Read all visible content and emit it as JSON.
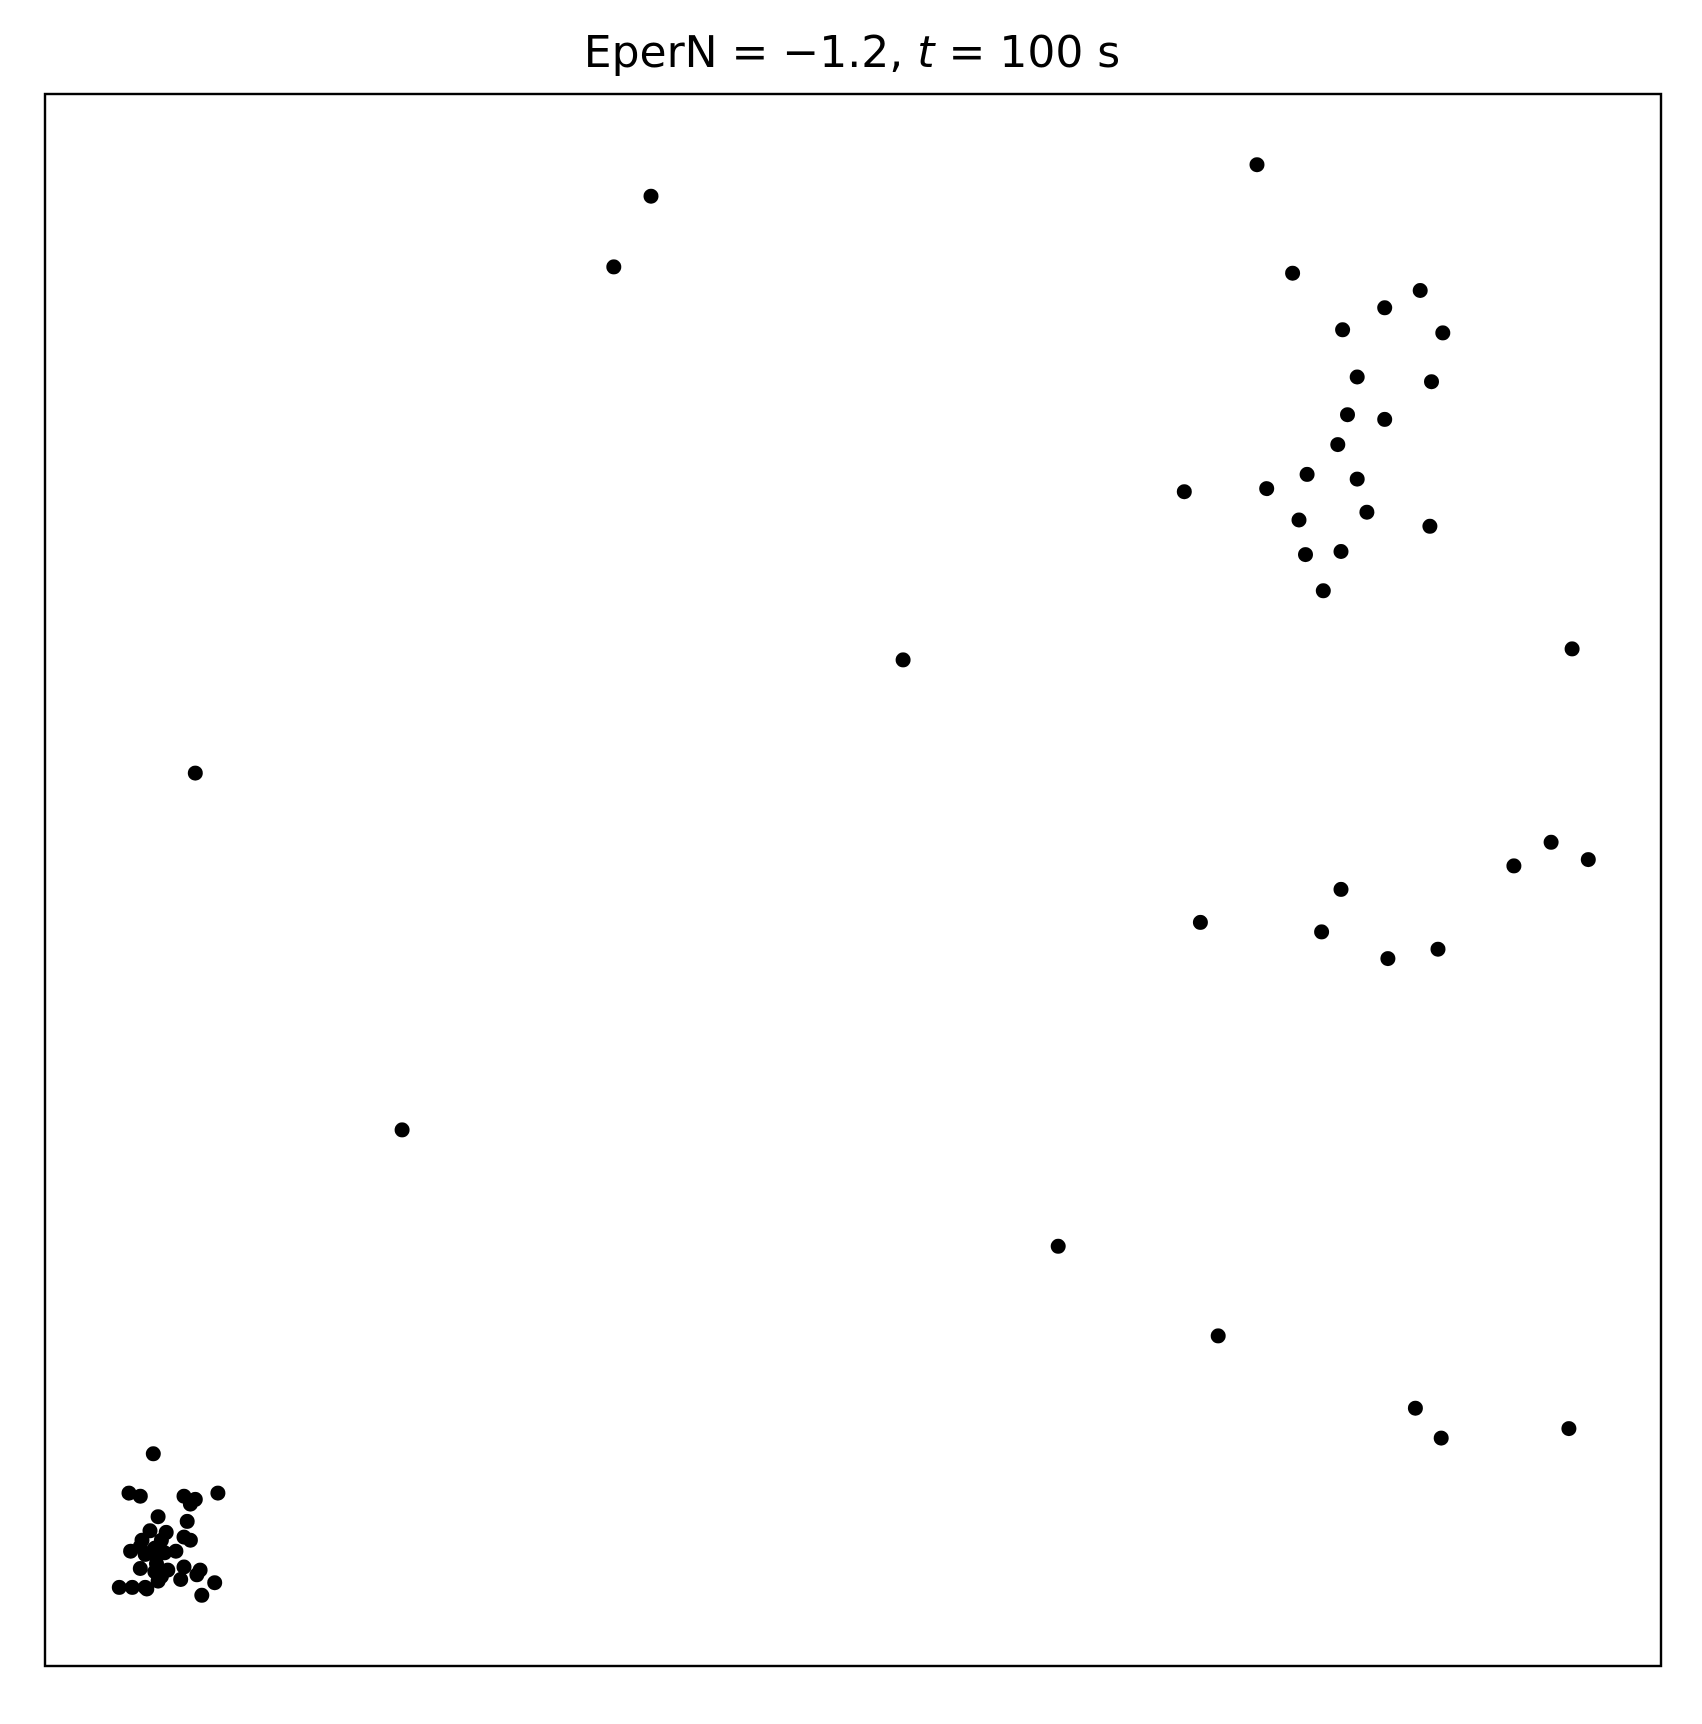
{
  "chart_data": {
    "type": "scatter",
    "title": "EperN = −1.2, t = 100 s",
    "title_parts": {
      "lead": "EperN = −1.2, ",
      "italic": "t",
      "tail": " = 100 s"
    },
    "xlabel": "",
    "ylabel": "",
    "xlim": [
      0,
      100
    ],
    "ylim": [
      0,
      100
    ],
    "ticks": false,
    "grid": false,
    "legend": "none",
    "marker_color": "#000000",
    "frame_color": "#000000",
    "points": [
      [
        75.0,
        95.5
      ],
      [
        37.5,
        93.5
      ],
      [
        35.2,
        89.0
      ],
      [
        77.2,
        88.6
      ],
      [
        85.1,
        87.5
      ],
      [
        82.9,
        86.4
      ],
      [
        80.3,
        85.0
      ],
      [
        86.5,
        84.8
      ],
      [
        81.2,
        82.0
      ],
      [
        85.8,
        81.7
      ],
      [
        80.6,
        79.6
      ],
      [
        80.0,
        77.7
      ],
      [
        82.9,
        79.3
      ],
      [
        78.1,
        75.8
      ],
      [
        81.2,
        75.5
      ],
      [
        70.5,
        74.7
      ],
      [
        75.6,
        74.9
      ],
      [
        81.8,
        73.4
      ],
      [
        77.6,
        72.9
      ],
      [
        85.7,
        72.5
      ],
      [
        80.2,
        70.9
      ],
      [
        78.0,
        70.7
      ],
      [
        79.1,
        68.4
      ],
      [
        53.1,
        64.0
      ],
      [
        94.5,
        64.7
      ],
      [
        9.3,
        56.8
      ],
      [
        93.2,
        52.4
      ],
      [
        95.5,
        51.3
      ],
      [
        90.9,
        50.9
      ],
      [
        80.2,
        49.4
      ],
      [
        71.5,
        47.3
      ],
      [
        79.0,
        46.7
      ],
      [
        86.2,
        45.6
      ],
      [
        83.1,
        45.0
      ],
      [
        22.1,
        34.1
      ],
      [
        62.7,
        26.7
      ],
      [
        72.6,
        21.0
      ],
      [
        84.8,
        16.4
      ],
      [
        86.4,
        14.5
      ],
      [
        94.3,
        15.1
      ],
      [
        6.7,
        13.5
      ],
      [
        5.2,
        11.0
      ],
      [
        5.9,
        10.8
      ],
      [
        8.6,
        10.8
      ],
      [
        9.3,
        10.6
      ],
      [
        10.7,
        11.0
      ],
      [
        9.0,
        10.3
      ],
      [
        7.0,
        9.5
      ],
      [
        8.8,
        9.2
      ],
      [
        6.5,
        8.6
      ],
      [
        7.5,
        8.5
      ],
      [
        6.0,
        8.0
      ],
      [
        7.2,
        8.0
      ],
      [
        8.6,
        8.2
      ],
      [
        9.0,
        8.0
      ],
      [
        5.3,
        7.3
      ],
      [
        5.9,
        7.6
      ],
      [
        6.8,
        7.5
      ],
      [
        7.4,
        7.2
      ],
      [
        8.1,
        7.3
      ],
      [
        6.2,
        7.1
      ],
      [
        6.9,
        7.0
      ],
      [
        5.9,
        6.2
      ],
      [
        6.9,
        6.5
      ],
      [
        6.8,
        6.0
      ],
      [
        7.6,
        6.1
      ],
      [
        8.6,
        6.3
      ],
      [
        9.6,
        6.1
      ],
      [
        7.2,
        5.7
      ],
      [
        7.0,
        5.4
      ],
      [
        8.4,
        5.5
      ],
      [
        9.4,
        5.8
      ],
      [
        4.6,
        5.0
      ],
      [
        5.4,
        5.0
      ],
      [
        6.2,
        5.0
      ],
      [
        6.3,
        4.9
      ],
      [
        10.5,
        5.3
      ],
      [
        9.7,
        4.5
      ]
    ]
  }
}
